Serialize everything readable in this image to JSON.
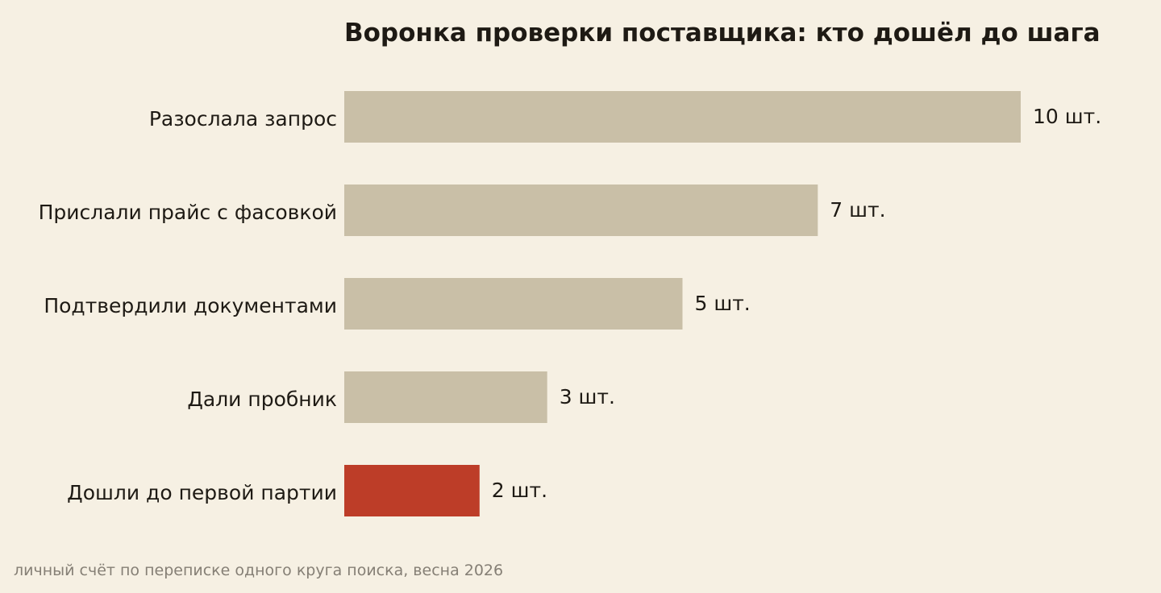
{
  "chart_data": {
    "type": "bar",
    "orientation": "horizontal",
    "title": "Воронка проверки поставщика: кто дошёл до шага",
    "categories": [
      "Разослала запрос",
      "Прислали прайс с фасовкой",
      "Подтвердили документами",
      "Дали пробник",
      "Дошли до первой партии"
    ],
    "values": [
      10,
      7,
      5,
      3,
      2
    ],
    "value_labels": [
      "10 шт.",
      "7 шт.",
      "5 шт.",
      "3 шт.",
      "2 шт."
    ],
    "xlabel": "",
    "ylabel": "",
    "xlim": [
      0,
      10
    ],
    "grid": false,
    "legend": "none",
    "colors": {
      "default_bar": "#c9bfa7",
      "highlight_bar": "#bd3d28",
      "background": "#f6f0e3"
    },
    "highlight_index": 4,
    "caption": "личный счёт по переписке одного круга поиска, весна 2026"
  }
}
